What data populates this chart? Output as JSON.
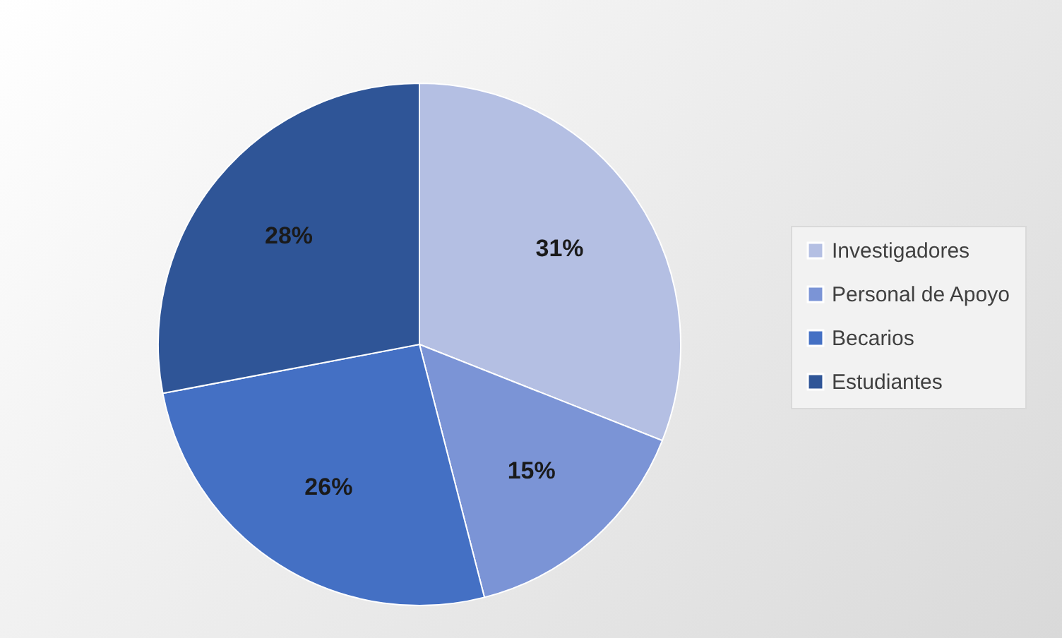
{
  "chart_data": {
    "type": "pie",
    "categories": [
      "Investigadores",
      "Personal de Apoyo",
      "Becarios",
      "Estudiantes"
    ],
    "values": [
      31,
      15,
      26,
      28
    ],
    "colors": [
      "#b4bfe3",
      "#7b94d6",
      "#4470c4",
      "#2f5597"
    ],
    "value_labels": [
      "31%",
      "15%",
      "26%",
      "28%"
    ],
    "legend": "right"
  }
}
